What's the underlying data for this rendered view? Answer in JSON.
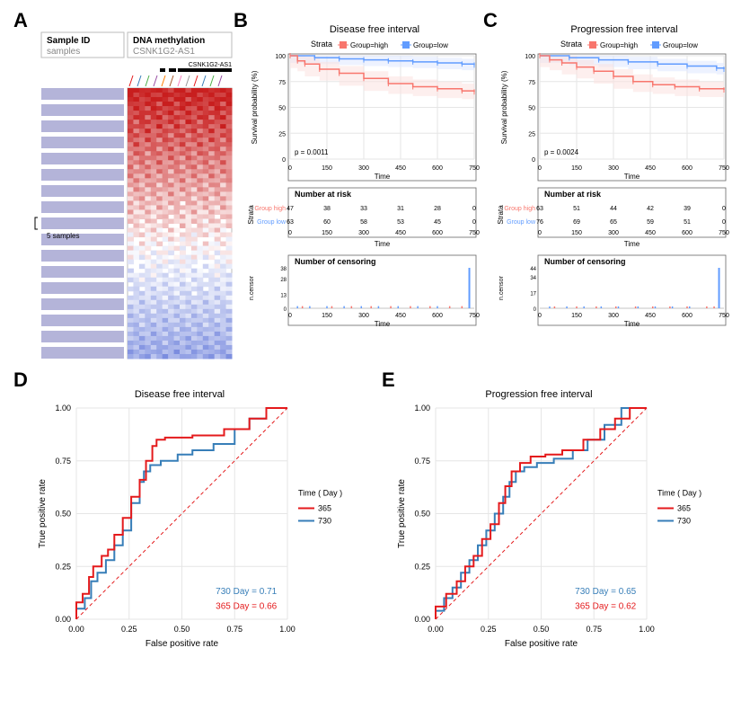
{
  "panelA": {
    "labels": {
      "sampleID": "Sample ID",
      "samples": "samples",
      "dna": "DNA methylation",
      "gene": "CSNK1G2-AS1",
      "scale": "5 samples"
    },
    "heat": {
      "cols": 18,
      "rows": 60,
      "top_color": "#c81e1e",
      "mid_color": "#ffffff",
      "bot_color": "#6b7fdb",
      "bg": "#ffffff",
      "border": "#bbbbbb",
      "sample_bar_color": "#b4b4d9"
    }
  },
  "panelB": {
    "title": "Disease free interval",
    "pvalue": "p = 0.0011",
    "colors": {
      "high": "#f8766d",
      "low": "#619cff",
      "high_band": "#fce0dd",
      "low_band": "#dbe6ff",
      "grid": "#e6e6e6",
      "axis": "#000000"
    },
    "surv": {
      "high": [
        [
          0,
          100
        ],
        [
          30,
          95
        ],
        [
          60,
          92
        ],
        [
          120,
          87
        ],
        [
          200,
          83
        ],
        [
          300,
          78
        ],
        [
          400,
          73
        ],
        [
          500,
          70
        ],
        [
          600,
          68
        ],
        [
          700,
          66
        ],
        [
          750,
          65
        ]
      ],
      "low": [
        [
          0,
          100
        ],
        [
          100,
          98
        ],
        [
          200,
          97
        ],
        [
          300,
          96
        ],
        [
          400,
          95
        ],
        [
          500,
          94
        ],
        [
          600,
          93
        ],
        [
          700,
          92
        ],
        [
          750,
          91
        ]
      ],
      "high_band_w": 7,
      "low_band_w": 5,
      "xlim": [
        0,
        750
      ],
      "xticks": [
        0,
        150,
        300,
        450,
        600,
        750
      ],
      "ylim": [
        0,
        100
      ],
      "yticks": [
        0,
        25,
        50,
        75,
        100
      ]
    },
    "risk": {
      "header": "Number at risk",
      "high": [
        47,
        38,
        33,
        31,
        28,
        0
      ],
      "low": [
        63,
        60,
        58,
        53,
        45,
        0
      ]
    },
    "censor": {
      "header": "Number of censoring",
      "yticks": [
        0,
        13,
        28,
        38
      ],
      "spike_x": 730,
      "spike_h": 38,
      "ticks_low": [
        30,
        80,
        150,
        220,
        290,
        360,
        440,
        520,
        600
      ],
      "ticks_high": [
        50,
        170,
        250,
        330,
        410,
        490,
        570,
        650,
        700
      ]
    }
  },
  "panelC": {
    "title": "Progression free interval",
    "pvalue": "p = 0.0024",
    "surv": {
      "high": [
        [
          0,
          100
        ],
        [
          40,
          96
        ],
        [
          90,
          93
        ],
        [
          150,
          89
        ],
        [
          220,
          85
        ],
        [
          300,
          80
        ],
        [
          380,
          75
        ],
        [
          460,
          72
        ],
        [
          550,
          70
        ],
        [
          650,
          68
        ],
        [
          750,
          67
        ]
      ],
      "low": [
        [
          0,
          100
        ],
        [
          120,
          98
        ],
        [
          240,
          96
        ],
        [
          360,
          94
        ],
        [
          480,
          92
        ],
        [
          600,
          90
        ],
        [
          720,
          88
        ],
        [
          750,
          87
        ]
      ]
    },
    "risk": {
      "high": [
        63,
        51,
        44,
        42,
        39,
        0
      ],
      "low": [
        76,
        69,
        65,
        59,
        51,
        0
      ]
    },
    "censor": {
      "yticks": [
        0,
        17,
        34,
        44
      ],
      "spike_x": 730,
      "spike_h": 44,
      "ticks_low": [
        40,
        110,
        180,
        250,
        320,
        400,
        470,
        540,
        610
      ],
      "ticks_high": [
        60,
        150,
        230,
        310,
        390,
        460,
        530,
        600,
        680,
        710
      ]
    }
  },
  "panelD": {
    "title": "Disease free interval",
    "legend_title": "Time ( Day )",
    "items": [
      {
        "label": "365",
        "color": "#e41a1c"
      },
      {
        "label": "730",
        "color": "#377eb8"
      }
    ],
    "text730": "730 Day  =  0.71",
    "text365": "365 Day  =  0.66",
    "xlabel": "False positive rate",
    "ylabel": "True positive rate",
    "ticks": [
      0.0,
      0.25,
      0.5,
      0.75,
      1.0
    ],
    "line365": [
      [
        0,
        0
      ],
      [
        0.03,
        0.08
      ],
      [
        0.06,
        0.12
      ],
      [
        0.08,
        0.2
      ],
      [
        0.12,
        0.25
      ],
      [
        0.15,
        0.3
      ],
      [
        0.18,
        0.33
      ],
      [
        0.22,
        0.4
      ],
      [
        0.26,
        0.48
      ],
      [
        0.3,
        0.58
      ],
      [
        0.33,
        0.66
      ],
      [
        0.36,
        0.75
      ],
      [
        0.38,
        0.82
      ],
      [
        0.42,
        0.85
      ],
      [
        0.55,
        0.86
      ],
      [
        0.7,
        0.87
      ],
      [
        0.82,
        0.9
      ],
      [
        0.9,
        0.95
      ],
      [
        1.0,
        1.0
      ]
    ],
    "line730": [
      [
        0,
        0
      ],
      [
        0.04,
        0.05
      ],
      [
        0.07,
        0.1
      ],
      [
        0.1,
        0.18
      ],
      [
        0.14,
        0.22
      ],
      [
        0.18,
        0.28
      ],
      [
        0.22,
        0.35
      ],
      [
        0.26,
        0.42
      ],
      [
        0.3,
        0.55
      ],
      [
        0.32,
        0.65
      ],
      [
        0.35,
        0.7
      ],
      [
        0.4,
        0.73
      ],
      [
        0.48,
        0.75
      ],
      [
        0.55,
        0.78
      ],
      [
        0.65,
        0.8
      ],
      [
        0.75,
        0.83
      ],
      [
        0.82,
        0.9
      ],
      [
        0.9,
        0.95
      ],
      [
        1.0,
        1.0
      ]
    ],
    "diag_color": "#e41a1c"
  },
  "panelE": {
    "title": "Progression free interval",
    "text730": "730 Day  =  0.65",
    "text365": "365 Day  =  0.62",
    "line365": [
      [
        0,
        0
      ],
      [
        0.05,
        0.06
      ],
      [
        0.1,
        0.12
      ],
      [
        0.14,
        0.18
      ],
      [
        0.18,
        0.25
      ],
      [
        0.22,
        0.3
      ],
      [
        0.26,
        0.38
      ],
      [
        0.3,
        0.45
      ],
      [
        0.33,
        0.55
      ],
      [
        0.36,
        0.63
      ],
      [
        0.4,
        0.7
      ],
      [
        0.45,
        0.74
      ],
      [
        0.52,
        0.77
      ],
      [
        0.6,
        0.78
      ],
      [
        0.7,
        0.8
      ],
      [
        0.78,
        0.85
      ],
      [
        0.85,
        0.9
      ],
      [
        0.92,
        0.95
      ],
      [
        1.0,
        1.0
      ]
    ],
    "line730": [
      [
        0,
        0
      ],
      [
        0.04,
        0.04
      ],
      [
        0.08,
        0.1
      ],
      [
        0.12,
        0.15
      ],
      [
        0.16,
        0.22
      ],
      [
        0.2,
        0.28
      ],
      [
        0.24,
        0.35
      ],
      [
        0.28,
        0.42
      ],
      [
        0.32,
        0.5
      ],
      [
        0.35,
        0.58
      ],
      [
        0.38,
        0.65
      ],
      [
        0.42,
        0.7
      ],
      [
        0.48,
        0.72
      ],
      [
        0.56,
        0.74
      ],
      [
        0.65,
        0.76
      ],
      [
        0.72,
        0.8
      ],
      [
        0.8,
        0.85
      ],
      [
        0.88,
        0.92
      ],
      [
        1.0,
        1.0
      ]
    ]
  },
  "legend_surv": {
    "label_high": "Group=high",
    "label_low": "Group=low",
    "title": "Strata"
  }
}
